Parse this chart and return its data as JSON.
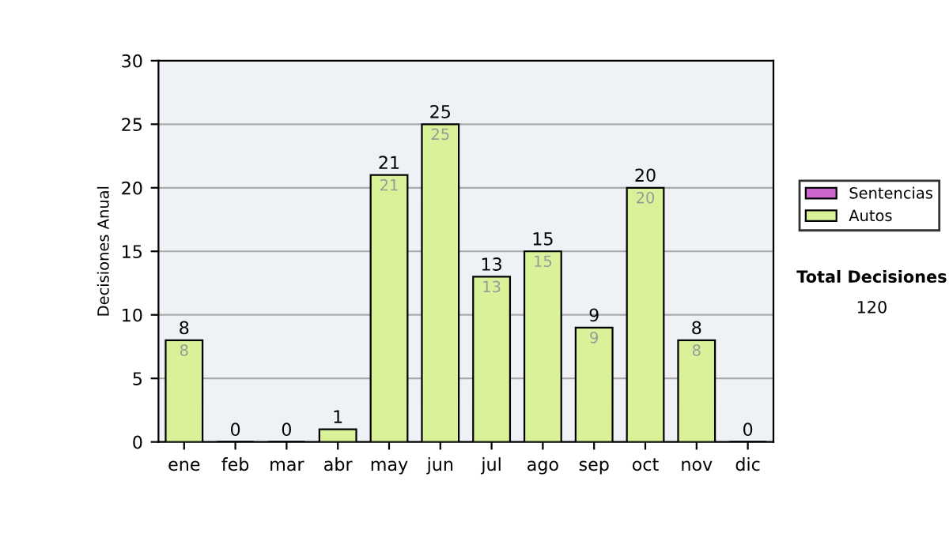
{
  "chart_data": {
    "type": "bar",
    "stacked": true,
    "ylabel": "Decisiones Anual",
    "categories": [
      "ene",
      "feb",
      "mar",
      "abr",
      "may",
      "jun",
      "jul",
      "ago",
      "sep",
      "oct",
      "nov",
      "dic"
    ],
    "series": [
      {
        "name": "Sentencias",
        "color": "#cc66cc",
        "values": [
          0,
          0,
          0,
          0,
          0,
          0,
          0,
          0,
          0,
          0,
          0,
          0
        ]
      },
      {
        "name": "Autos",
        "color": "#d9f29a",
        "values": [
          8,
          0,
          0,
          1,
          21,
          25,
          13,
          15,
          9,
          20,
          8,
          0
        ],
        "value_labels": [
          "8",
          null,
          null,
          null,
          "21",
          "25",
          "13",
          "15",
          "9",
          "20",
          "8",
          null
        ]
      }
    ],
    "totals": [
      "8",
      "0",
      "0",
      "1",
      "21",
      "25",
      "13",
      "15",
      "9",
      "20",
      "8",
      "0"
    ],
    "ylim": [
      0,
      30
    ],
    "yticks": [
      0,
      5,
      10,
      15,
      20,
      25,
      30
    ],
    "grid": "y",
    "legend": "right",
    "annotations": [
      "Total Decisiones",
      "120"
    ]
  }
}
